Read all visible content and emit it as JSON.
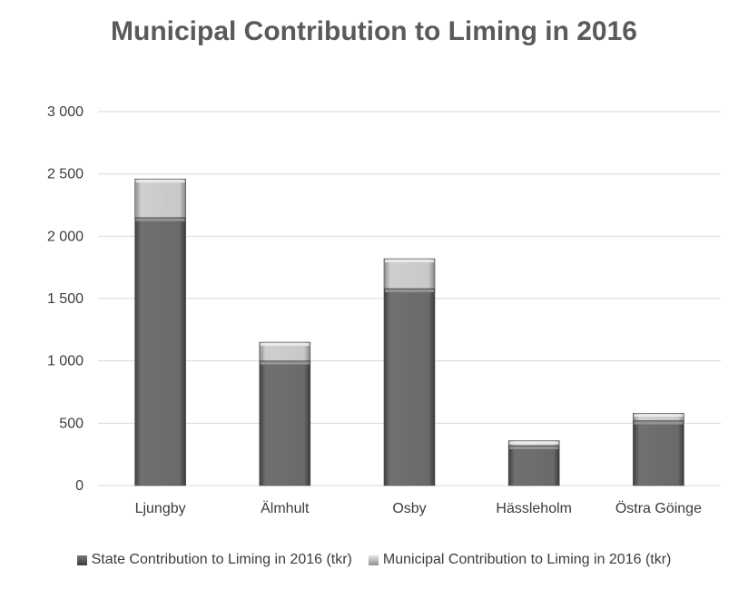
{
  "chart_data": {
    "type": "bar",
    "stacked": true,
    "title": "Municipal Contribution to Liming in 2016",
    "categories": [
      "Ljungby",
      "Älmhult",
      "Osby",
      "Hässleholm",
      "Östra Göinge"
    ],
    "series": [
      {
        "name": "State Contribution to Liming in 2016 (tkr)",
        "values": [
          2150,
          1000,
          1580,
          320,
          520
        ],
        "color": "#5e5e5e"
      },
      {
        "name": "Municipal Contribution to Liming in 2016 (tkr)",
        "values": [
          310,
          150,
          240,
          40,
          60
        ],
        "color": "#bdbdbd"
      }
    ],
    "ylim": [
      0,
      3000
    ],
    "yticks": [
      0,
      500,
      1000,
      1500,
      2000,
      2500,
      3000
    ],
    "ytick_labels": [
      "0",
      "500",
      "1 000",
      "1 500",
      "2 000",
      "2 500",
      "3 000"
    ],
    "grid": true,
    "legend": "bottom"
  }
}
